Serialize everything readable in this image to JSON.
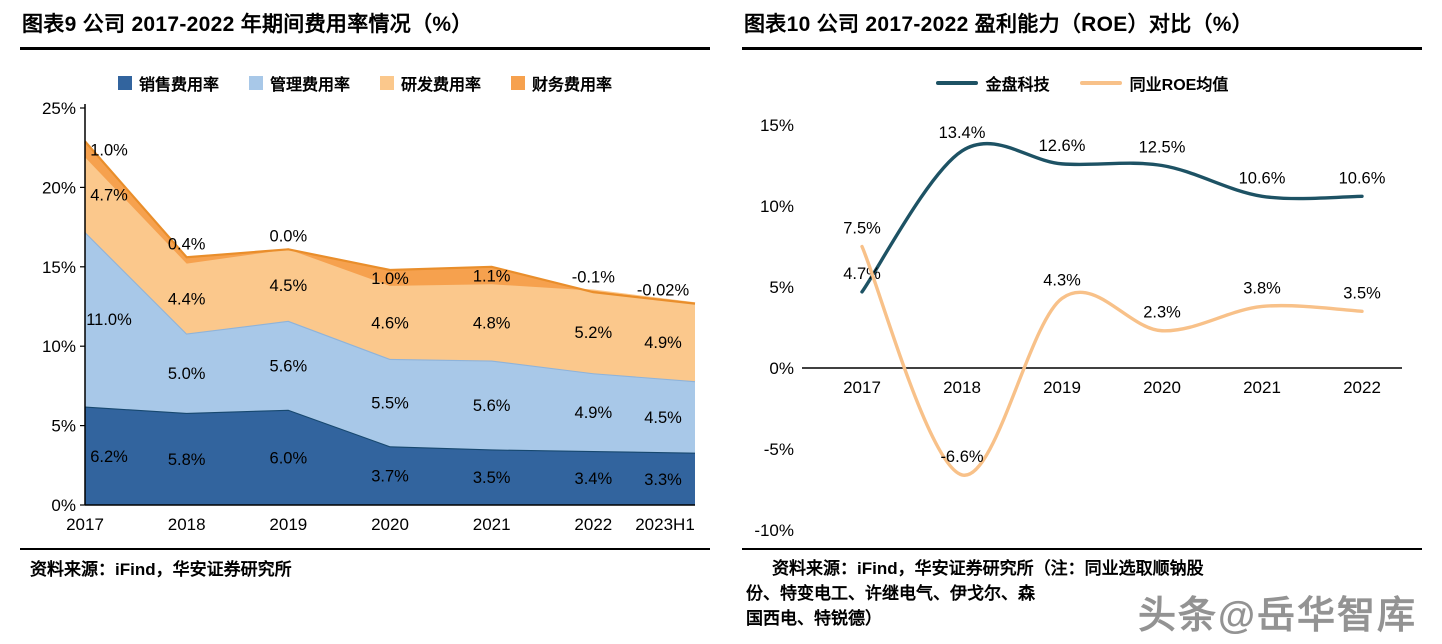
{
  "watermark": "头条@岳华智库",
  "panels": {
    "left": {
      "title": "图表9 公司 2017-2022 年期间费用率情况（%）",
      "source_lines": [
        "资料来源：iFind，华安证券研究所"
      ]
    },
    "right": {
      "title": "图表10 公司 2017-2022 盈利能力（ROE）对比（%）",
      "source_lines": [
        "资料来源：iFind，华安证券研究所（注：同业选取顺钠股",
        "份、特变电工、许继电气、伊戈尔、森",
        "国西电、特锐德）"
      ]
    }
  },
  "chart_data": [
    {
      "type": "area",
      "stacked": true,
      "title": "图表9 公司 2017-2022 年期间费用率情况（%）",
      "categories": [
        "2017",
        "2018",
        "2019",
        "2020",
        "2021",
        "2022",
        "2023H1"
      ],
      "series": [
        {
          "name": "销售费用率",
          "fill": "#32649E",
          "stroke": "#17486F",
          "values": [
            6.2,
            5.8,
            6.0,
            3.7,
            3.5,
            3.4,
            3.3
          ],
          "labels": [
            "6.2%",
            "5.8%",
            "6.0%",
            "3.7%",
            "3.5%",
            "3.4%",
            "3.3%"
          ]
        },
        {
          "name": "管理费用率",
          "fill": "#A8C8E8",
          "stroke": "#8FB3D9",
          "values": [
            11.0,
            5.0,
            5.6,
            5.5,
            5.6,
            4.9,
            4.5
          ],
          "labels": [
            "11.0%",
            "5.0%",
            "5.6%",
            "5.5%",
            "5.6%",
            "4.9%",
            "4.5%"
          ]
        },
        {
          "name": "研发费用率",
          "fill": "#FBC88C",
          "stroke": "#FBC88C",
          "values": [
            4.7,
            4.4,
            4.5,
            4.6,
            4.8,
            5.2,
            4.9
          ],
          "labels": [
            "4.7%",
            "4.4%",
            "4.5%",
            "4.6%",
            "4.8%",
            "5.2%",
            "4.9%"
          ]
        },
        {
          "name": "财务费用率",
          "fill": "#F6A14E",
          "stroke": "#E98E2B",
          "values": [
            1.0,
            0.4,
            0.0,
            1.0,
            1.1,
            -0.1,
            -0.02
          ],
          "labels": [
            "1.0%",
            "0.4%",
            "0.0%",
            "1.0%",
            "1.1%",
            "-0.1%",
            "-0.02%"
          ]
        }
      ],
      "ylim": [
        0,
        25
      ],
      "yticks": [
        "0%",
        "5%",
        "10%",
        "15%",
        "20%",
        "25%"
      ],
      "grid": false,
      "legend_position": "top"
    },
    {
      "type": "line",
      "title": "图表10 公司 2017-2022 盈利能力（ROE）对比（%）",
      "categories": [
        "2017",
        "2018",
        "2019",
        "2020",
        "2021",
        "2022"
      ],
      "series": [
        {
          "name": "金盘科技",
          "color": "#1D5264",
          "values": [
            4.7,
            13.4,
            12.6,
            12.5,
            10.6,
            10.6
          ],
          "labels": [
            "4.7%",
            "13.4%",
            "12.6%",
            "12.5%",
            "10.6%",
            "10.6%"
          ]
        },
        {
          "name": "同业ROE均值",
          "color": "#F8C189",
          "values": [
            7.5,
            -6.6,
            4.3,
            2.3,
            3.8,
            3.5
          ],
          "labels": [
            "7.5%",
            "-6.6%",
            "4.3%",
            "2.3%",
            "3.8%",
            "3.5%"
          ]
        }
      ],
      "ylim": [
        -10,
        15
      ],
      "yticks": [
        "15%",
        "10%",
        "5%",
        "0%",
        "-5%",
        "-10%"
      ],
      "grid": false,
      "legend_position": "top"
    }
  ]
}
